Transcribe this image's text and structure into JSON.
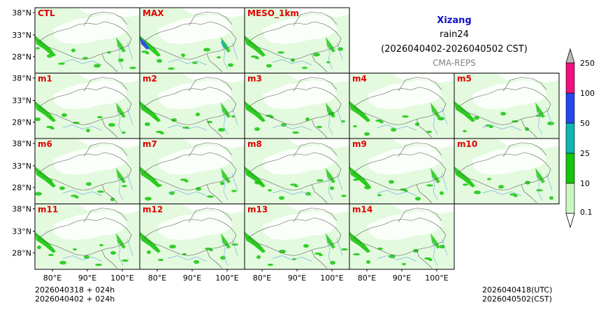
{
  "header": {
    "title": "Xizang",
    "variable": "rain24",
    "period": "(2026040402-2026040502 CST)",
    "model": "CMA-REPS"
  },
  "colors": {
    "title": "#1010c8",
    "model": "#808080",
    "panel_label": "#e00000",
    "frame": "#000000",
    "boundary": "#555555",
    "river": "#7ab4e0"
  },
  "panels": [
    {
      "label": "CTL",
      "row": 0,
      "col": 0
    },
    {
      "label": "MAX",
      "row": 0,
      "col": 1
    },
    {
      "label": "MESO_1km",
      "row": 0,
      "col": 2
    },
    {
      "label": "m1",
      "row": 1,
      "col": 0
    },
    {
      "label": "m2",
      "row": 1,
      "col": 1
    },
    {
      "label": "m3",
      "row": 1,
      "col": 2
    },
    {
      "label": "m4",
      "row": 1,
      "col": 3
    },
    {
      "label": "m5",
      "row": 1,
      "col": 4
    },
    {
      "label": "m6",
      "row": 2,
      "col": 0
    },
    {
      "label": "m7",
      "row": 2,
      "col": 1
    },
    {
      "label": "m8",
      "row": 2,
      "col": 2
    },
    {
      "label": "m9",
      "row": 2,
      "col": 3
    },
    {
      "label": "m10",
      "row": 2,
      "col": 4
    },
    {
      "label": "m11",
      "row": 3,
      "col": 0
    },
    {
      "label": "m12",
      "row": 3,
      "col": 1
    },
    {
      "label": "m13",
      "row": 3,
      "col": 2
    },
    {
      "label": "m14",
      "row": 3,
      "col": 3
    }
  ],
  "lat_ticks": [
    "38°N",
    "33°N",
    "28°N"
  ],
  "lon_ticks": [
    "80°E",
    "90°E",
    "100°E"
  ],
  "colorbar": {
    "levels": [
      "0.1",
      "10",
      "25",
      "50",
      "100",
      "250"
    ],
    "colors": [
      "#ccf5c4",
      "#16c60a",
      "#10b5b5",
      "#2448ee",
      "#f0107e"
    ],
    "extend_top_color": "#bbbbbb",
    "extend_bottom_color": "#ffffff"
  },
  "footer": {
    "init_utc": "2026040318  +  024h",
    "init_cst": "2026040402  +  024h",
    "valid_utc": "2026040418(UTC)",
    "valid_cst": "2026040502(CST)"
  }
}
